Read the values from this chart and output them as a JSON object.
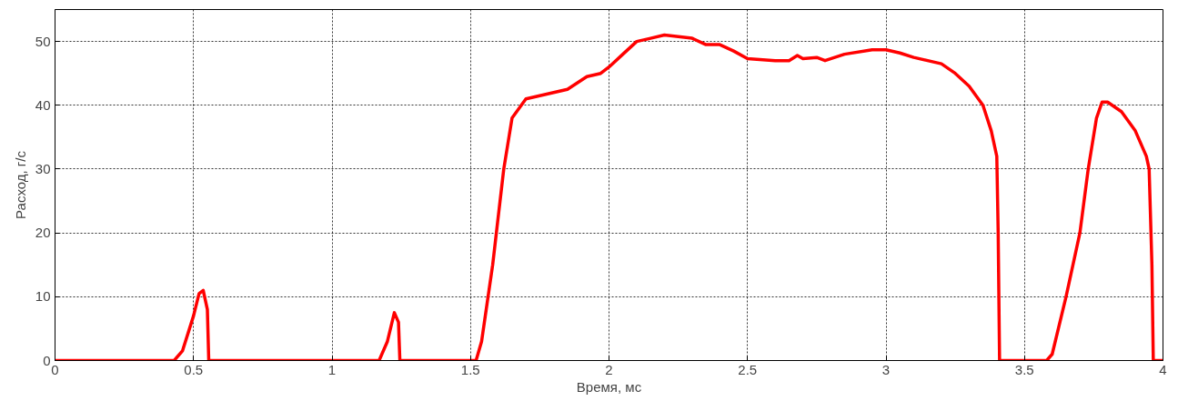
{
  "chart_data": {
    "type": "line",
    "xlabel": "Время, мс",
    "ylabel": "Расход, г/с",
    "xlim": [
      0,
      4
    ],
    "ylim": [
      0,
      55
    ],
    "xticks": [
      0,
      0.5,
      1,
      1.5,
      2,
      2.5,
      3,
      3.5,
      4
    ],
    "yticks": [
      0,
      10,
      20,
      30,
      40,
      50
    ],
    "grid": true,
    "line_style": "solid",
    "series": [
      {
        "color": "#ff0000",
        "x": [
          0,
          0.43,
          0.46,
          0.5,
          0.52,
          0.535,
          0.55,
          0.555,
          1.17,
          1.2,
          1.225,
          1.24,
          1.245,
          1.52,
          1.54,
          1.58,
          1.62,
          1.65,
          1.7,
          1.75,
          1.85,
          1.92,
          1.97,
          2.0,
          2.05,
          2.1,
          2.15,
          2.2,
          2.3,
          2.35,
          2.4,
          2.45,
          2.5,
          2.6,
          2.65,
          2.68,
          2.7,
          2.75,
          2.78,
          2.85,
          2.95,
          3.0,
          3.05,
          3.1,
          3.2,
          3.25,
          3.3,
          3.35,
          3.38,
          3.4,
          3.405,
          3.41,
          3.58,
          3.6,
          3.65,
          3.7,
          3.73,
          3.76,
          3.78,
          3.8,
          3.85,
          3.9,
          3.94,
          3.95,
          3.96,
          3.965,
          4
        ],
        "values": [
          0,
          0,
          1.5,
          7,
          10.5,
          11,
          8,
          0,
          0,
          3,
          7.5,
          6,
          0,
          0,
          3,
          15,
          30,
          38,
          41,
          41.5,
          42.5,
          44.5,
          45,
          46,
          48,
          50,
          50.5,
          51,
          50.5,
          49.5,
          49.5,
          48.5,
          47.3,
          47,
          47,
          47.8,
          47.3,
          47.5,
          47,
          48,
          48.7,
          48.7,
          48.2,
          47.5,
          46.5,
          45,
          43,
          40,
          36,
          32,
          20,
          0,
          0,
          1,
          10,
          20,
          30,
          38,
          40.5,
          40.5,
          39,
          36,
          32,
          30,
          15,
          0,
          0
        ]
      }
    ]
  }
}
